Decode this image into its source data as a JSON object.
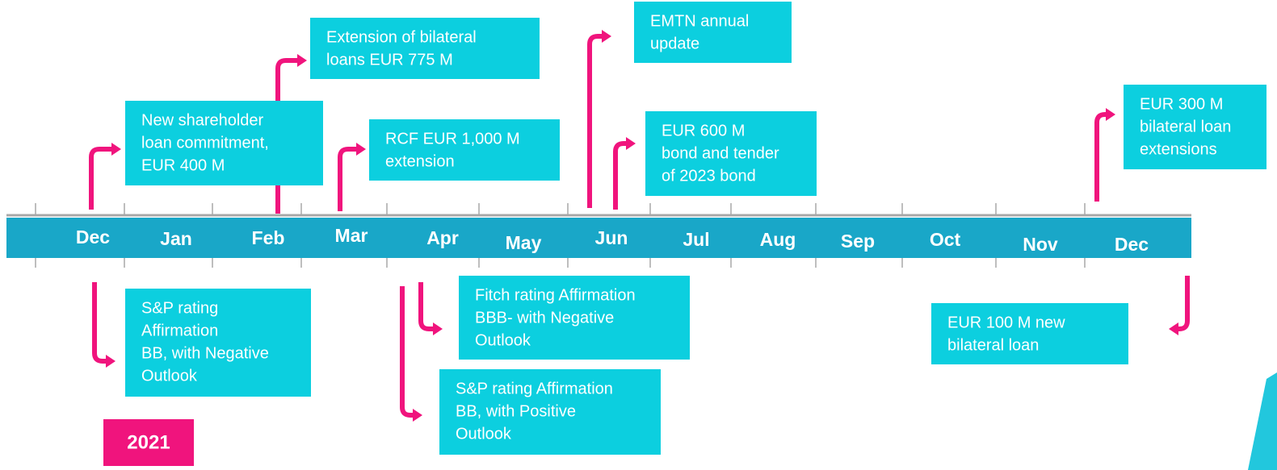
{
  "months": [
    "Dec",
    "Jan",
    "Feb",
    "Mar",
    "Apr",
    "May",
    "Jun",
    "Jul",
    "Aug",
    "Sep",
    "Oct",
    "Nov",
    "Dec"
  ],
  "events": [
    {
      "lines": [
        "Extension of bilateral",
        "loans EUR 775 M"
      ]
    },
    {
      "lines": [
        "New shareholder",
        "loan commitment,",
        "EUR 400 M"
      ]
    },
    {
      "lines": [
        "RCF EUR 1,000 M",
        "extension"
      ]
    },
    {
      "lines": [
        "EMTN annual",
        "update"
      ]
    },
    {
      "lines": [
        "EUR 600 M",
        "bond and tender",
        "of 2023 bond"
      ]
    },
    {
      "lines": [
        "EUR 300 M",
        "bilateral loan",
        "extensions"
      ]
    },
    {
      "lines": [
        "S&P rating",
        "Affirmation",
        "BB, with Negative",
        "Outlook"
      ]
    },
    {
      "lines": [
        "Fitch rating Affirmation",
        "BBB- with Negative",
        "Outlook"
      ]
    },
    {
      "lines": [
        "S&P rating Affirmation",
        "BB, with Positive",
        "Outlook"
      ]
    },
    {
      "lines": [
        "EUR 100 M new",
        "bilateral loan"
      ]
    }
  ],
  "year": "2021"
}
